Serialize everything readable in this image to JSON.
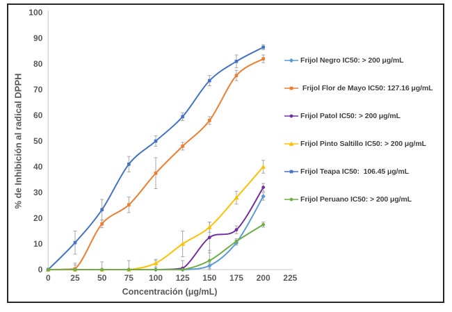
{
  "frame": {
    "border_color": "#262626",
    "background": "#FFFFFF"
  },
  "chart_data": {
    "type": "line",
    "title": "",
    "xlabel": "Concentración (μg/mL)",
    "ylabel": "% de Inhibición al radical DPPH",
    "xlim": [
      0,
      225
    ],
    "ylim": [
      0,
      100
    ],
    "x_ticks": [
      0,
      25,
      50,
      75,
      100,
      125,
      150,
      175,
      200,
      225
    ],
    "y_ticks": [
      0,
      10,
      20,
      30,
      40,
      50,
      60,
      70,
      80,
      90,
      100
    ],
    "grid": false,
    "legend_position": "right",
    "error_bar_color": "#A6A6A6",
    "axis_color": "#D0D0D0",
    "tick_color": "#595959",
    "legend_text_color": "#404040",
    "x": [
      0,
      25,
      50,
      75,
      100,
      125,
      150,
      175,
      200
    ],
    "series": [
      {
        "id": "frijol-negro",
        "name": "Frijol Negro IC50: > 200 μg/mL",
        "color": "#5B9BD5",
        "marker": "diamond",
        "values": [
          0,
          0,
          0,
          0,
          0,
          0,
          1.5,
          10.5,
          28.5
        ],
        "errors": [
          0,
          0,
          0,
          0,
          0,
          0,
          1,
          1,
          1.5
        ]
      },
      {
        "id": "frijol-flor-de-mayo",
        "name": " Frijol Flor de Mayo IC50: 127.16 μg/mL",
        "color": "#ED7D31",
        "marker": "square",
        "values": [
          0,
          0.3,
          17.8,
          25.2,
          37.5,
          48,
          58,
          75.5,
          82
        ],
        "errors": [
          0,
          1.5,
          1.5,
          3,
          6,
          1.5,
          1.5,
          2,
          1.5
        ]
      },
      {
        "id": "frijol-patol",
        "name": "Frijol Patol IC50: > 200 μg/mL",
        "color": "#7030A0",
        "marker": "circle",
        "values": [
          0,
          0,
          0,
          0,
          0,
          0.5,
          12.5,
          15.5,
          32
        ],
        "errors": [
          0,
          0,
          0,
          0,
          0,
          0.5,
          6,
          1.5,
          1.5
        ]
      },
      {
        "id": "frijol-pinto-saltillo",
        "name": "Frijol Pinto Saltillo IC50: > 200 μg/mL",
        "color": "#FFC000",
        "marker": "triangle",
        "values": [
          0,
          0,
          0,
          0,
          2.5,
          10,
          16.5,
          28,
          40
        ],
        "errors": [
          0,
          0,
          0,
          0,
          1.5,
          5,
          2,
          2.5,
          2.5
        ]
      },
      {
        "id": "frijol-teapa",
        "name": "Frijol Teapa IC50:  106.45 μg/mL",
        "color": "#4472C4",
        "marker": "square",
        "values": [
          0,
          10.5,
          23.3,
          41,
          50,
          59.5,
          73.5,
          81,
          86.5
        ],
        "errors": [
          0,
          4.5,
          4,
          3,
          2,
          1.5,
          2,
          2.5,
          1
        ]
      },
      {
        "id": "frijol-peruano",
        "name": "Frijol Peruano IC50: > 200 μg/mL",
        "color": "#70AD47",
        "marker": "circle",
        "values": [
          0,
          0,
          0,
          0,
          0,
          0,
          3.5,
          11,
          17.5
        ],
        "errors": [
          0,
          2.5,
          3,
          3.5,
          3.5,
          3.5,
          4,
          1,
          1
        ]
      }
    ]
  }
}
